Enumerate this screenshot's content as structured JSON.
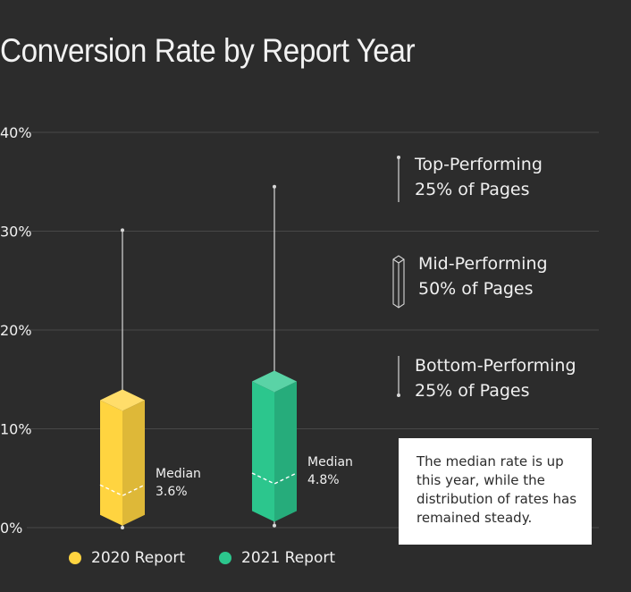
{
  "colors": {
    "background": "#2c2c2c",
    "grid": "#474747",
    "text": "#f0f0f0",
    "whisker": "#d8d8d8",
    "median_line": "#ffffff",
    "note_bg": "#ffffff",
    "note_text": "#2c2c2c"
  },
  "chart_data": {
    "type": "box",
    "title": "Conversion Rate by Report Year",
    "y_ticks": [
      "0%",
      "10%",
      "20%",
      "30%",
      "40%"
    ],
    "ylim": [
      0,
      40
    ],
    "grid": true,
    "series": [
      {
        "name": "2020 Report",
        "min": 0,
        "q1": 0.2,
        "median": 3.6,
        "q3": 12.9,
        "max": 30.1,
        "color": "#ffd440",
        "median_label": "Median",
        "median_value": "3.6%"
      },
      {
        "name": "2021 Report",
        "min": 0.2,
        "q1": 0.6,
        "median": 4.8,
        "q3": 14.8,
        "max": 34.5,
        "color": "#2cc68d",
        "median_label": "Median",
        "median_value": "4.8%"
      }
    ],
    "key": {
      "top": {
        "line1": "Top-Performing",
        "line2": "25% of Pages"
      },
      "mid": {
        "line1": "Mid-Performing",
        "line2": "50% of Pages"
      },
      "bottom": {
        "line1": "Bottom-Performing",
        "line2": "25% of Pages"
      }
    },
    "annotation": "The median rate is up this year, while the distribution of rates has remained steady."
  },
  "legend": [
    {
      "label": "2020 Report",
      "color": "#ffd440"
    },
    {
      "label": "2021 Report",
      "color": "#2cc68d"
    }
  ]
}
